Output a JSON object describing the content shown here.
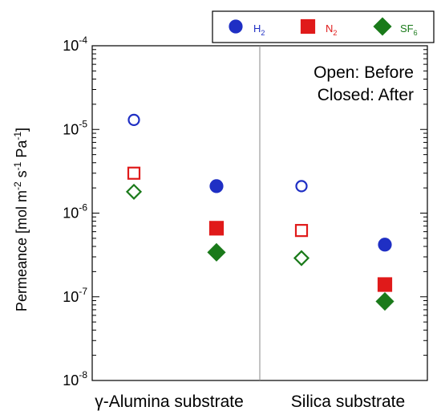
{
  "chart_data": {
    "type": "scatter",
    "ylabel": "Permeance [mol m-2 s-1 Pa-1]",
    "yscale": "log",
    "ylim": [
      1e-08,
      0.0001
    ],
    "y_ticks": [
      {
        "value": 1e-08,
        "base": "10",
        "exp": "-8"
      },
      {
        "value": 1e-07,
        "base": "10",
        "exp": "-7"
      },
      {
        "value": 1e-06,
        "base": "10",
        "exp": "-6"
      },
      {
        "value": 1e-05,
        "base": "10",
        "exp": "-5"
      },
      {
        "value": 0.0001,
        "base": "10",
        "exp": "-4"
      }
    ],
    "groups": [
      "γ-Alumina substrate",
      "Silica substrate"
    ],
    "conditions": [
      "Before",
      "After"
    ],
    "annotation": [
      "Open: Before",
      "Closed: After"
    ],
    "series": [
      {
        "name": "H2",
        "label_main": "H",
        "label_sub": "2",
        "color": "#1f2fc4",
        "marker": "circle",
        "points": [
          {
            "group": "γ-Alumina substrate",
            "condition": "Before",
            "y": 1.3e-05
          },
          {
            "group": "γ-Alumina substrate",
            "condition": "After",
            "y": 2.1e-06
          },
          {
            "group": "Silica substrate",
            "condition": "Before",
            "y": 2.1e-06
          },
          {
            "group": "Silica substrate",
            "condition": "After",
            "y": 4.2e-07
          }
        ]
      },
      {
        "name": "N2",
        "label_main": "N",
        "label_sub": "2",
        "color": "#e01a1a",
        "marker": "square",
        "points": [
          {
            "group": "γ-Alumina substrate",
            "condition": "Before",
            "y": 3e-06
          },
          {
            "group": "γ-Alumina substrate",
            "condition": "After",
            "y": 6.6e-07
          },
          {
            "group": "Silica substrate",
            "condition": "Before",
            "y": 6.2e-07
          },
          {
            "group": "Silica substrate",
            "condition": "After",
            "y": 1.4e-07
          }
        ]
      },
      {
        "name": "SF6",
        "label_main": "SF",
        "label_sub": "6",
        "color": "#1a7a1a",
        "marker": "diamond",
        "points": [
          {
            "group": "γ-Alumina substrate",
            "condition": "Before",
            "y": 1.8e-06
          },
          {
            "group": "γ-Alumina substrate",
            "condition": "After",
            "y": 3.4e-07
          },
          {
            "group": "Silica substrate",
            "condition": "Before",
            "y": 2.9e-07
          },
          {
            "group": "Silica substrate",
            "condition": "After",
            "y": 8.8e-08
          }
        ]
      }
    ],
    "legend_position": "top-right, above plot",
    "grid": false
  }
}
